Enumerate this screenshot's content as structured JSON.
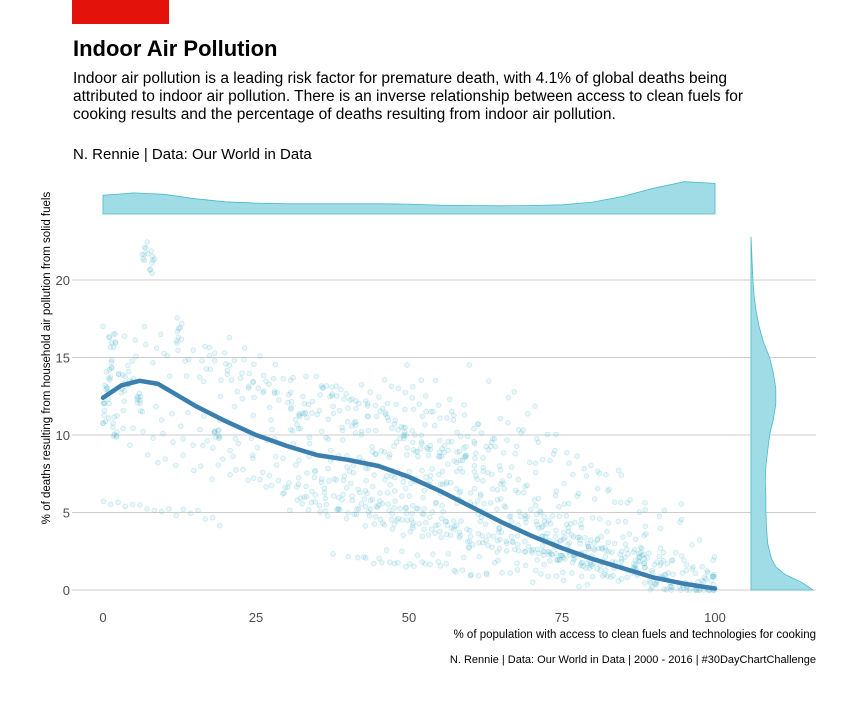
{
  "header": {
    "title": "Indoor Air Pollution",
    "subtitle": "Indoor air pollution is a leading risk factor for premature death, with 4.1% of global deaths being attributed to indoor air pollution. There is an inverse relationship between access to clean fuels for cooking results and the percentage of deaths resulting from indoor air pollution.",
    "byline": "N. Rennie | Data: Our World in Data"
  },
  "colors": {
    "accent": "#e3120b",
    "points": "#4cb8cc",
    "smooth_line": "#3a7fad",
    "density_fill": "#9fdce6",
    "density_line": "#4cb8cc",
    "grid": "#cccccc"
  },
  "chart_data": {
    "type": "scatter",
    "title": "Indoor Air Pollution",
    "xlabel": "% of population with access to clean fuels and technologies for cooking",
    "ylabel": "% of deaths resulting from household air pollution from solid fuels",
    "caption": "N. Rennie | Data: Our World in Data | 2000 - 2016 | #30DayChartChallenge",
    "xlim": [
      0,
      100
    ],
    "ylim": [
      0,
      23
    ],
    "x_ticks": [
      0,
      25,
      50,
      75,
      100
    ],
    "y_ticks": [
      0,
      5,
      10,
      15,
      20
    ],
    "grid": "horizontal major lines",
    "smooth_trend": {
      "x": [
        0,
        3,
        6,
        9,
        12,
        15,
        20,
        25,
        30,
        35,
        40,
        45,
        50,
        55,
        60,
        65,
        70,
        75,
        80,
        85,
        90,
        95,
        100
      ],
      "y": [
        12.4,
        13.2,
        13.5,
        13.3,
        12.6,
        11.9,
        10.9,
        10.0,
        9.3,
        8.7,
        8.4,
        8.0,
        7.3,
        6.4,
        5.4,
        4.4,
        3.5,
        2.7,
        2.0,
        1.4,
        0.8,
        0.4,
        0.1
      ]
    },
    "x_density": {
      "x": [
        0,
        5,
        10,
        15,
        20,
        25,
        30,
        35,
        40,
        45,
        50,
        55,
        60,
        65,
        70,
        75,
        80,
        85,
        90,
        95,
        100
      ],
      "density": [
        0.55,
        0.62,
        0.58,
        0.45,
        0.36,
        0.32,
        0.3,
        0.3,
        0.3,
        0.3,
        0.29,
        0.26,
        0.25,
        0.24,
        0.25,
        0.27,
        0.35,
        0.52,
        0.76,
        0.95,
        0.9
      ]
    },
    "y_density": {
      "y": [
        0,
        0.5,
        1,
        1.5,
        2,
        3,
        4,
        5,
        6,
        7,
        8,
        9,
        10,
        11,
        12,
        13,
        14,
        15,
        16,
        17,
        18,
        19,
        20,
        21,
        22,
        22.8
      ],
      "density": [
        1.0,
        0.82,
        0.55,
        0.4,
        0.33,
        0.27,
        0.25,
        0.24,
        0.24,
        0.23,
        0.24,
        0.27,
        0.3,
        0.36,
        0.4,
        0.4,
        0.36,
        0.3,
        0.2,
        0.13,
        0.08,
        0.05,
        0.03,
        0.02,
        0.01,
        0.0
      ]
    },
    "point_clusters": [
      {
        "x": 0.5,
        "y": 11.5
      },
      {
        "x": 0.7,
        "y": 12.8
      },
      {
        "x": 1,
        "y": 14.2
      },
      {
        "x": 1.5,
        "y": 15.8
      },
      {
        "x": 2,
        "y": 10.5
      },
      {
        "x": 3,
        "y": 13.4
      },
      {
        "x": 4.5,
        "y": 14.0
      },
      {
        "x": 6,
        "y": 12.1
      },
      {
        "x": 7,
        "y": 22.0
      },
      {
        "x": 8,
        "y": 21.2
      },
      {
        "x": 12.5,
        "y": 16.8
      },
      {
        "x": 18.5,
        "y": 10.2
      },
      {
        "x": 32,
        "y": 11.1
      },
      {
        "x": 100,
        "y": 1.6
      },
      {
        "x": 100,
        "y": 0.2
      }
    ]
  }
}
